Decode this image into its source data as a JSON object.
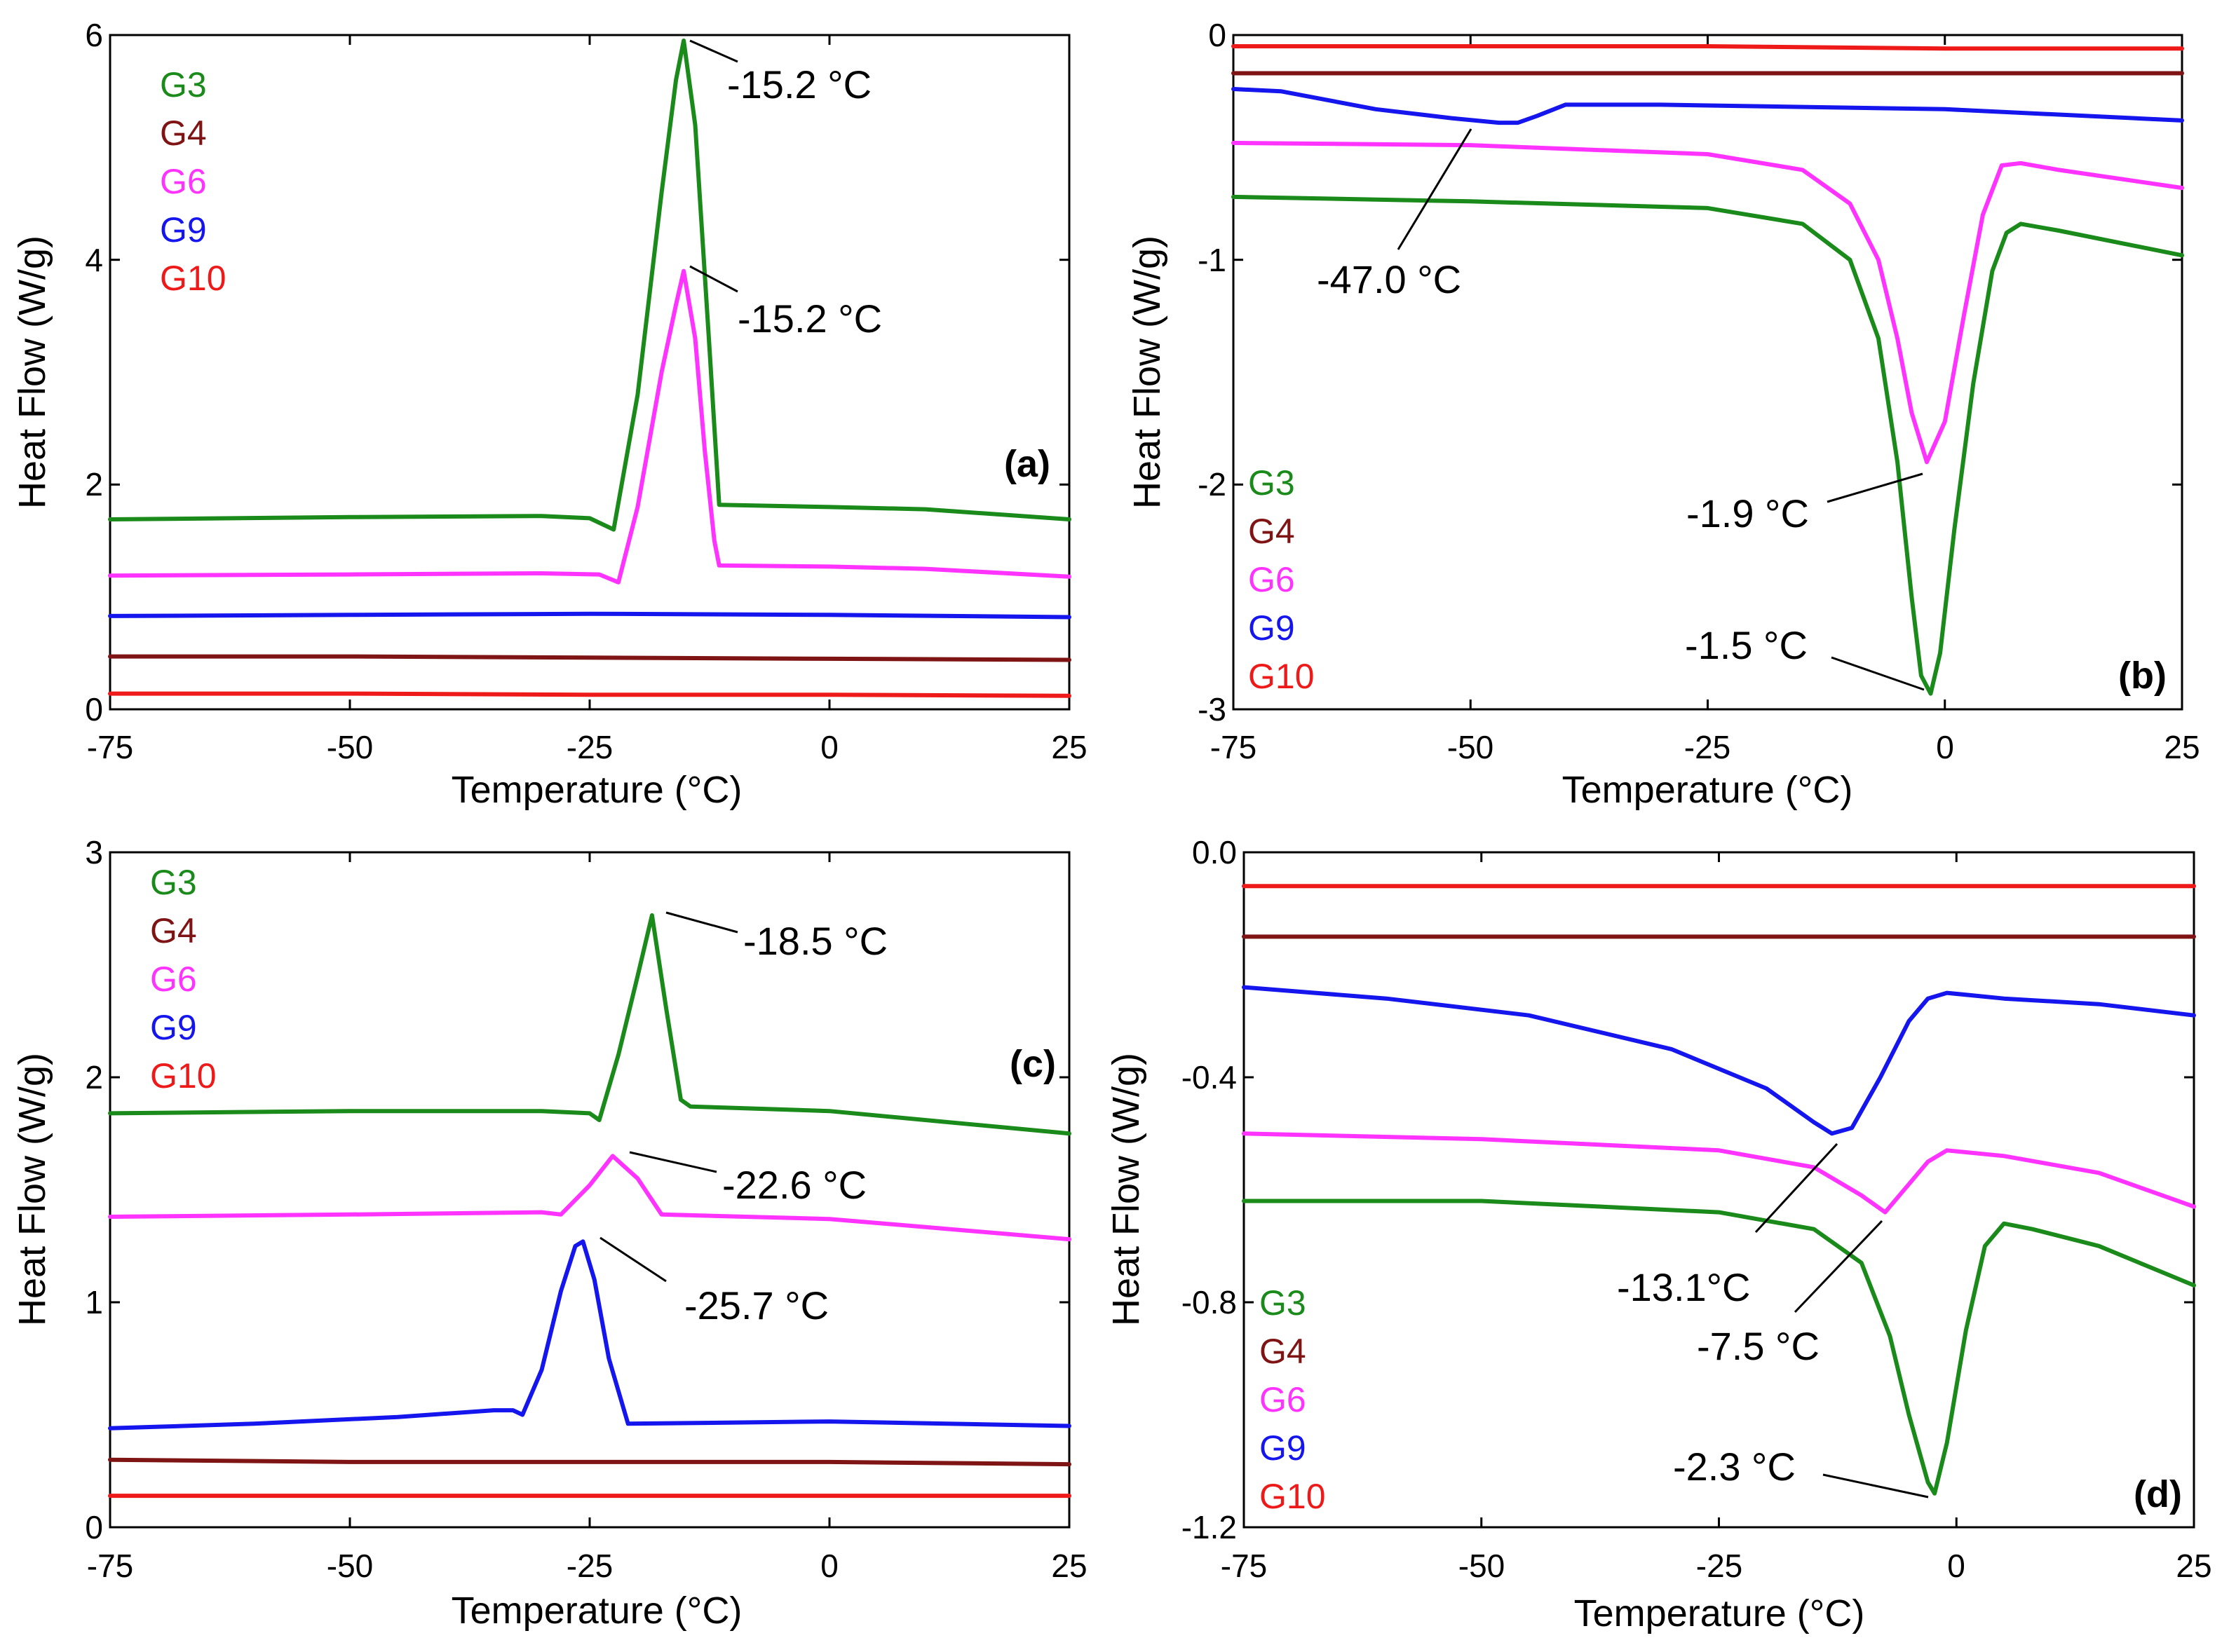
{
  "colors": {
    "G3": "#1a8a1a",
    "G4": "#7f1414",
    "G6": "#ff33ff",
    "G9": "#1515ee",
    "G10": "#ee1a1a",
    "axis": "#000000",
    "text": "#000000"
  },
  "chart_data": [
    {
      "panel": "(a)",
      "type": "line",
      "xlabel": "Temperature (°C)",
      "ylabel": "Heat Flow (W/g)",
      "xlim": [
        -75,
        25
      ],
      "ylim": [
        0,
        6
      ],
      "xticks": [
        -75,
        -50,
        -25,
        0,
        25
      ],
      "yticks": [
        0,
        2,
        4,
        6
      ],
      "ytick_labels": [
        "0",
        "2",
        "4",
        "6"
      ],
      "legend_position": "top-left",
      "series": [
        {
          "name": "G3",
          "x": [
            -75,
            -50,
            -30,
            -25,
            -22.5,
            -20,
            -17.5,
            -16,
            -15.2,
            -14,
            -12.5,
            -11.5,
            0,
            10,
            25
          ],
          "y": [
            1.69,
            1.71,
            1.72,
            1.7,
            1.6,
            2.8,
            4.6,
            5.6,
            5.95,
            5.2,
            3.2,
            1.82,
            1.8,
            1.78,
            1.69
          ]
        },
        {
          "name": "G4",
          "x": [
            -75,
            -50,
            -25,
            0,
            25
          ],
          "y": [
            0.47,
            0.47,
            0.46,
            0.45,
            0.44
          ]
        },
        {
          "name": "G6",
          "x": [
            -75,
            -50,
            -30,
            -24,
            -22,
            -20,
            -17.5,
            -16,
            -15.2,
            -14,
            -13,
            -12,
            -11.5,
            0,
            10,
            25
          ],
          "y": [
            1.19,
            1.2,
            1.21,
            1.2,
            1.13,
            1.8,
            3.0,
            3.6,
            3.9,
            3.3,
            2.3,
            1.5,
            1.28,
            1.27,
            1.25,
            1.18
          ]
        },
        {
          "name": "G9",
          "x": [
            -75,
            -50,
            -25,
            0,
            25
          ],
          "y": [
            0.83,
            0.84,
            0.85,
            0.84,
            0.82
          ]
        },
        {
          "name": "G10",
          "x": [
            -75,
            -50,
            -25,
            0,
            25
          ],
          "y": [
            0.14,
            0.14,
            0.13,
            0.13,
            0.12
          ]
        }
      ],
      "annotations": [
        {
          "text": "-15.2 °C",
          "x": -15.2,
          "y": 5.95
        },
        {
          "text": "-15.2 °C",
          "x": -15.2,
          "y": 3.9
        }
      ]
    },
    {
      "panel": "(b)",
      "type": "line",
      "xlabel": "Temperature (°C)",
      "ylabel": "Heat Flow (W/g)",
      "xlim": [
        -75,
        25
      ],
      "ylim": [
        -3,
        0
      ],
      "xticks": [
        -75,
        -50,
        -25,
        0,
        25
      ],
      "yticks": [
        -3,
        -2,
        -1,
        0
      ],
      "ytick_labels": [
        "-3",
        "-2",
        "-1",
        "0"
      ],
      "legend_position": "bottom-left",
      "series": [
        {
          "name": "G3",
          "x": [
            -75,
            -50,
            -25,
            -15,
            -10,
            -7,
            -5,
            -3.5,
            -2.5,
            -1.5,
            -0.5,
            1,
            3,
            5,
            6.5,
            8,
            12,
            25
          ],
          "y": [
            -0.72,
            -0.74,
            -0.77,
            -0.84,
            -1.0,
            -1.35,
            -1.9,
            -2.5,
            -2.85,
            -2.93,
            -2.75,
            -2.2,
            -1.55,
            -1.05,
            -0.88,
            -0.84,
            -0.87,
            -0.98
          ]
        },
        {
          "name": "G4",
          "x": [
            -75,
            -50,
            -25,
            0,
            25
          ],
          "y": [
            -0.17,
            -0.17,
            -0.17,
            -0.17,
            -0.17
          ]
        },
        {
          "name": "G6",
          "x": [
            -75,
            -50,
            -25,
            -15,
            -10,
            -7,
            -5,
            -3.5,
            -1.9,
            0,
            2,
            4,
            6,
            8,
            12,
            25
          ],
          "y": [
            -0.48,
            -0.49,
            -0.53,
            -0.6,
            -0.75,
            -1.0,
            -1.35,
            -1.68,
            -1.9,
            -1.72,
            -1.25,
            -0.8,
            -0.58,
            -0.57,
            -0.6,
            -0.68
          ]
        },
        {
          "name": "G9",
          "x": [
            -75,
            -70,
            -60,
            -52,
            -47,
            -45,
            -43,
            -40,
            -30,
            0,
            25
          ],
          "y": [
            -0.24,
            -0.25,
            -0.33,
            -0.37,
            -0.39,
            -0.39,
            -0.36,
            -0.31,
            -0.31,
            -0.33,
            -0.38
          ]
        },
        {
          "name": "G10",
          "x": [
            -75,
            -50,
            -25,
            0,
            25
          ],
          "y": [
            -0.05,
            -0.05,
            -0.05,
            -0.06,
            -0.06
          ]
        }
      ],
      "annotations": [
        {
          "text": "-47.0 °C",
          "x": -47.0,
          "y": -0.39
        },
        {
          "text": "-1.9 °C",
          "x": -1.9,
          "y": -1.9
        },
        {
          "text": "-1.5 °C",
          "x": -1.5,
          "y": -2.93
        }
      ]
    },
    {
      "panel": "(c)",
      "type": "line",
      "xlabel": "Temperature (°C)",
      "ylabel": "Heat Flow (W/g)",
      "xlim": [
        -75,
        25
      ],
      "ylim": [
        0,
        3
      ],
      "xticks": [
        -75,
        -50,
        -25,
        0,
        25
      ],
      "yticks": [
        0,
        1,
        2,
        3
      ],
      "ytick_labels": [
        "0",
        "1",
        "2",
        "3"
      ],
      "legend_position": "top-left",
      "series": [
        {
          "name": "G3",
          "x": [
            -75,
            -50,
            -30,
            -25,
            -24,
            -22,
            -20,
            -18.5,
            -17,
            -15.5,
            -14.5,
            0,
            25
          ],
          "y": [
            1.84,
            1.85,
            1.85,
            1.84,
            1.81,
            2.1,
            2.45,
            2.72,
            2.3,
            1.9,
            1.87,
            1.85,
            1.75
          ]
        },
        {
          "name": "G4",
          "x": [
            -75,
            -50,
            -25,
            0,
            25
          ],
          "y": [
            0.3,
            0.29,
            0.29,
            0.29,
            0.28
          ]
        },
        {
          "name": "G6",
          "x": [
            -75,
            -50,
            -30,
            -28,
            -25,
            -22.6,
            -20,
            -17.5,
            0,
            25
          ],
          "y": [
            1.38,
            1.39,
            1.4,
            1.39,
            1.52,
            1.65,
            1.55,
            1.39,
            1.37,
            1.28
          ]
        },
        {
          "name": "G9",
          "x": [
            -75,
            -60,
            -45,
            -35,
            -33,
            -32,
            -30,
            -28,
            -26.5,
            -25.7,
            -24.5,
            -23,
            -21,
            0,
            25
          ],
          "y": [
            0.44,
            0.46,
            0.49,
            0.52,
            0.52,
            0.5,
            0.7,
            1.05,
            1.25,
            1.27,
            1.1,
            0.75,
            0.46,
            0.47,
            0.45
          ]
        },
        {
          "name": "G10",
          "x": [
            -75,
            -50,
            -25,
            0,
            25
          ],
          "y": [
            0.14,
            0.14,
            0.14,
            0.14,
            0.14
          ]
        }
      ],
      "annotations": [
        {
          "text": "-18.5 °C",
          "x": -18.5,
          "y": 2.72
        },
        {
          "text": "-22.6 °C",
          "x": -22.6,
          "y": 1.65
        },
        {
          "text": "-25.7 °C",
          "x": -25.7,
          "y": 1.27
        }
      ]
    },
    {
      "panel": "(d)",
      "type": "line",
      "xlabel": "Temperature (°C)",
      "ylabel": "Heat Flow (W/g)",
      "xlim": [
        -75,
        25
      ],
      "ylim": [
        -1.2,
        0
      ],
      "xticks": [
        -75,
        -50,
        -25,
        0,
        25
      ],
      "yticks": [
        -1.2,
        -0.8,
        -0.4,
        0
      ],
      "ytick_labels": [
        "-1.2",
        "-0.8",
        "-0.4",
        "0.0"
      ],
      "legend_position": "bottom-left",
      "series": [
        {
          "name": "G3",
          "x": [
            -75,
            -50,
            -25,
            -15,
            -10,
            -7,
            -5,
            -3,
            -2.3,
            -1,
            1,
            3,
            5,
            8,
            15,
            25
          ],
          "y": [
            -0.62,
            -0.62,
            -0.64,
            -0.67,
            -0.73,
            -0.86,
            -1.0,
            -1.12,
            -1.14,
            -1.05,
            -0.85,
            -0.7,
            -0.66,
            -0.67,
            -0.7,
            -0.77
          ]
        },
        {
          "name": "G4",
          "x": [
            -75,
            -50,
            -25,
            0,
            25
          ],
          "y": [
            -0.15,
            -0.15,
            -0.15,
            -0.15,
            -0.15
          ]
        },
        {
          "name": "G6",
          "x": [
            -75,
            -50,
            -25,
            -15,
            -10,
            -7.5,
            -5,
            -3,
            -1,
            5,
            15,
            25
          ],
          "y": [
            -0.5,
            -0.51,
            -0.53,
            -0.56,
            -0.61,
            -0.64,
            -0.59,
            -0.55,
            -0.53,
            -0.54,
            -0.57,
            -0.63
          ]
        },
        {
          "name": "G9",
          "x": [
            -75,
            -60,
            -45,
            -30,
            -20,
            -15,
            -13.1,
            -11,
            -8,
            -5,
            -3,
            -1,
            5,
            15,
            25
          ],
          "y": [
            -0.24,
            -0.26,
            -0.29,
            -0.35,
            -0.42,
            -0.48,
            -0.5,
            -0.49,
            -0.4,
            -0.3,
            -0.26,
            -0.25,
            -0.26,
            -0.27,
            -0.29
          ]
        },
        {
          "name": "G10",
          "x": [
            -75,
            -50,
            -25,
            0,
            25
          ],
          "y": [
            -0.06,
            -0.06,
            -0.06,
            -0.06,
            -0.06
          ]
        }
      ],
      "annotations": [
        {
          "text": "-13.1°C",
          "x": -13.1,
          "y": -0.5
        },
        {
          "text": "-7.5 °C",
          "x": -7.5,
          "y": -0.64
        },
        {
          "text": "-2.3 °C",
          "x": -2.3,
          "y": -1.14
        }
      ]
    }
  ]
}
